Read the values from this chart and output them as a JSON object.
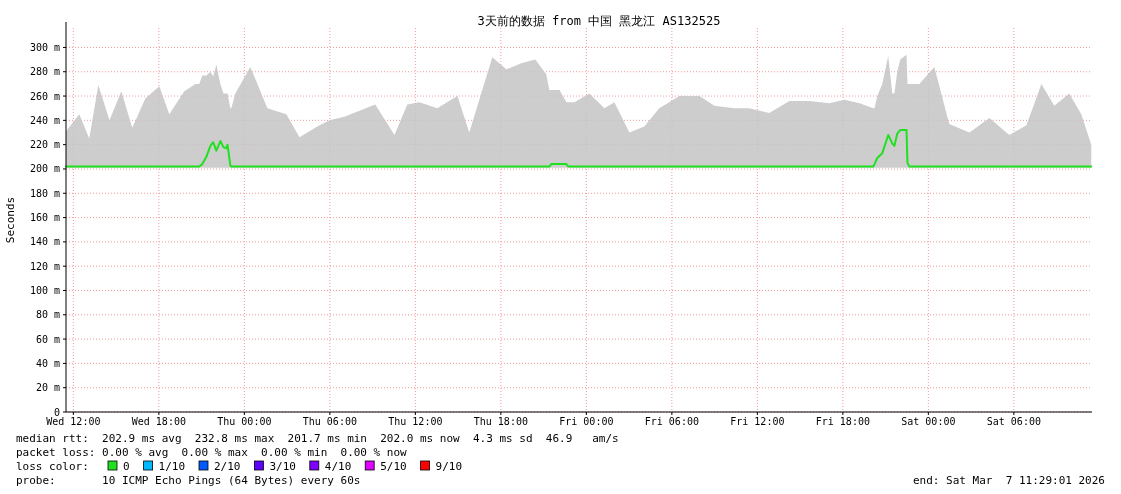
{
  "chart_data": {
    "type": "line",
    "title": "3天前的数据 from 中国 黑龙江 AS132525",
    "ylabel": "Seconds",
    "xlim": [
      "2026-03-04T11:29",
      "2026-03-07T11:29"
    ],
    "ylim": [
      0,
      316
    ],
    "xticks": [
      {
        "value": "2026-03-04T12:00",
        "label": "Wed 12:00"
      },
      {
        "value": "2026-03-04T18:00",
        "label": "Wed 18:00"
      },
      {
        "value": "2026-03-05T00:00",
        "label": "Thu 00:00"
      },
      {
        "value": "2026-03-05T06:00",
        "label": "Thu 06:00"
      },
      {
        "value": "2026-03-05T12:00",
        "label": "Thu 12:00"
      },
      {
        "value": "2026-03-05T18:00",
        "label": "Thu 18:00"
      },
      {
        "value": "2026-03-06T00:00",
        "label": "Fri 00:00"
      },
      {
        "value": "2026-03-06T06:00",
        "label": "Fri 06:00"
      },
      {
        "value": "2026-03-06T12:00",
        "label": "Fri 12:00"
      },
      {
        "value": "2026-03-06T18:00",
        "label": "Fri 18:00"
      },
      {
        "value": "2026-03-07T00:00",
        "label": "Sat 00:00"
      },
      {
        "value": "2026-03-07T06:00",
        "label": "Sat 06:00"
      }
    ],
    "yticks": [
      0,
      {
        "value": 20,
        "label": "20 m"
      },
      {
        "value": 40,
        "label": "40 m"
      },
      {
        "value": 60,
        "label": "60 m"
      },
      {
        "value": 80,
        "label": "80 m"
      },
      {
        "value": 100,
        "label": "100 m"
      },
      {
        "value": 120,
        "label": "120 m"
      },
      {
        "value": 140,
        "label": "140 m"
      },
      {
        "value": 160,
        "label": "160 m"
      },
      {
        "value": 180,
        "label": "180 m"
      },
      {
        "value": 200,
        "label": "200 m"
      },
      {
        "value": 220,
        "label": "220 m"
      },
      {
        "value": 240,
        "label": "240 m"
      },
      {
        "value": 260,
        "label": "260 m"
      },
      {
        "value": 280,
        "label": "280 m"
      },
      {
        "value": 300,
        "label": "300 m"
      }
    ],
    "grid": true,
    "legend": "bottom left",
    "legend_title": "loss color:",
    "series": [
      {
        "name": "0",
        "color": "#20e020",
        "x": [
          "2026-03-04T11:29",
          "2026-03-04T12:25",
          "2026-03-04T13:07",
          "2026-03-04T13:45",
          "2026-03-04T14:32",
          "2026-03-04T15:22",
          "2026-03-04T16:08",
          "2026-03-04T17:03",
          "2026-03-04T18:02",
          "2026-03-04T18:44",
          "2026-03-04T19:47",
          "2026-03-04T20:34",
          "2026-03-04T20:50",
          "2026-03-04T21:03",
          "2026-03-04T21:20",
          "2026-03-04T21:37",
          "2026-03-04T21:49",
          "2026-03-04T22:02",
          "2026-03-04T22:19",
          "2026-03-04T22:32",
          "2026-03-04T22:44",
          "2026-03-04T22:49",
          "2026-03-04T23:01",
          "2026-03-04T23:05",
          "2026-03-04T23:22",
          "2026-03-05T00:25",
          "2026-03-05T01:37",
          "2026-03-05T02:57",
          "2026-03-05T03:52",
          "2026-03-05T05:07",
          "2026-03-05T05:58",
          "2026-03-05T07:01",
          "2026-03-05T09:11",
          "2026-03-05T10:32",
          "2026-03-05T11:26",
          "2026-03-05T12:17",
          "2026-03-05T13:32",
          "2026-03-05T14:57",
          "2026-03-05T15:47",
          "2026-03-05T17:24",
          "2026-03-05T18:23",
          "2026-03-05T19:26",
          "2026-03-05T20:25",
          "2026-03-05T21:11",
          "2026-03-05T21:24",
          "2026-03-05T21:32",
          "2026-03-05T22:07",
          "2026-03-05T22:36",
          "2026-03-05T22:44",
          "2026-03-05T23:10",
          "2026-03-06T00:13",
          "2026-03-06T01:16",
          "2026-03-06T01:58",
          "2026-03-06T03:01",
          "2026-03-06T04:04",
          "2026-03-06T05:07",
          "2026-03-06T06:32",
          "2026-03-06T07:56",
          "2026-03-06T08:59",
          "2026-03-06T10:23",
          "2026-03-06T11:26",
          "2026-03-06T12:50",
          "2026-03-06T14:15",
          "2026-03-06T15:39",
          "2026-03-06T17:03",
          "2026-03-06T18:07",
          "2026-03-06T19:10",
          "2026-03-06T20:08",
          "2026-03-06T20:13",
          "2026-03-06T20:25",
          "2026-03-06T20:46",
          "2026-03-06T21:11",
          "2026-03-06T21:28",
          "2026-03-06T21:37",
          "2026-03-06T21:49",
          "2026-03-06T22:02",
          "2026-03-06T22:28",
          "2026-03-06T22:32",
          "2026-03-06T22:40",
          "2026-03-06T23:22",
          "2026-03-07T00:25",
          "2026-03-07T01:28",
          "2026-03-07T02:53",
          "2026-03-07T04:17",
          "2026-03-07T05:41",
          "2026-03-07T06:53",
          "2026-03-07T07:56",
          "2026-03-07T08:50",
          "2026-03-07T09:53",
          "2026-03-07T10:44",
          "2026-03-07T11:26"
        ],
        "values": [
          202,
          202,
          202,
          202,
          202,
          202,
          202,
          202,
          202,
          202,
          202,
          202,
          202,
          204,
          210,
          219,
          222,
          215,
          223,
          218,
          217,
          220,
          203,
          202,
          202,
          202,
          202,
          202,
          202,
          202,
          202,
          202,
          202,
          202,
          202,
          202,
          202,
          202,
          202,
          202,
          202,
          202,
          202,
          202,
          202,
          204,
          204,
          204,
          202,
          202,
          202,
          202,
          202,
          202,
          202,
          202,
          202,
          202,
          202,
          202,
          202,
          202,
          202,
          202,
          202,
          202,
          202,
          202,
          204,
          209,
          213,
          228,
          221,
          219,
          229,
          232,
          232,
          205,
          202,
          202,
          202,
          202,
          202,
          202,
          202,
          202,
          202,
          202,
          202,
          202,
          202
        ],
        "lower": [
          201,
          201,
          201,
          201,
          201,
          201,
          201,
          201,
          201,
          201,
          201,
          201,
          201,
          201,
          201,
          201,
          201,
          201,
          201,
          201,
          201,
          201,
          201,
          201,
          201,
          201,
          201,
          201,
          201,
          201,
          201,
          201,
          201,
          201,
          201,
          201,
          201,
          201,
          201,
          201,
          201,
          201,
          201,
          201,
          201,
          201,
          201,
          201,
          201,
          201,
          201,
          201,
          201,
          201,
          201,
          201,
          201,
          201,
          201,
          201,
          201,
          201,
          201,
          201,
          201,
          201,
          201,
          201,
          201,
          201,
          201,
          201,
          201,
          201,
          201,
          201,
          201,
          201,
          201,
          201,
          201,
          201,
          201,
          201,
          201,
          201,
          201,
          201,
          201,
          201,
          201
        ],
        "upper": [
          231,
          245,
          225,
          269,
          240,
          264,
          234,
          258,
          268,
          245,
          264,
          270,
          270,
          277,
          277,
          280,
          276,
          286,
          270,
          262,
          262,
          262,
          250,
          250,
          262,
          284,
          250,
          245,
          226,
          235,
          240,
          243,
          253,
          228,
          253,
          255,
          250,
          260,
          230,
          292,
          282,
          287,
          290,
          278,
          265,
          265,
          265,
          255,
          255,
          255,
          262,
          250,
          255,
          230,
          235,
          250,
          260,
          260,
          252,
          250,
          250,
          246,
          256,
          256,
          254,
          257,
          254,
          250,
          250,
          260,
          270,
          293,
          262,
          262,
          280,
          290,
          294,
          270,
          270,
          270,
          284,
          237,
          230,
          242,
          228,
          236,
          270,
          252,
          262,
          245,
          220
        ]
      },
      {
        "name": "1/10",
        "color": "#00b8ff"
      },
      {
        "name": "2/10",
        "color": "#0059ff"
      },
      {
        "name": "3/10",
        "color": "#5e00ff"
      },
      {
        "name": "4/10",
        "color": "#7e00ff"
      },
      {
        "name": "5/10",
        "color": "#dd00ff"
      },
      {
        "name": "9/10",
        "color": "#ff0000"
      }
    ],
    "annotations": [
      "median rtt:  202.9 ms avg  232.8 ms max  201.7 ms min  202.0 ms now  4.3 ms sd  46.9   am/s",
      "packet loss: 0.00 % avg  0.00 % max  0.00 % min  0.00 % now",
      "probe:       10 ICMP Echo Pings (64 Bytes) every 60s",
      "end: Sat Mar  7 11:29:01 2026"
    ]
  }
}
